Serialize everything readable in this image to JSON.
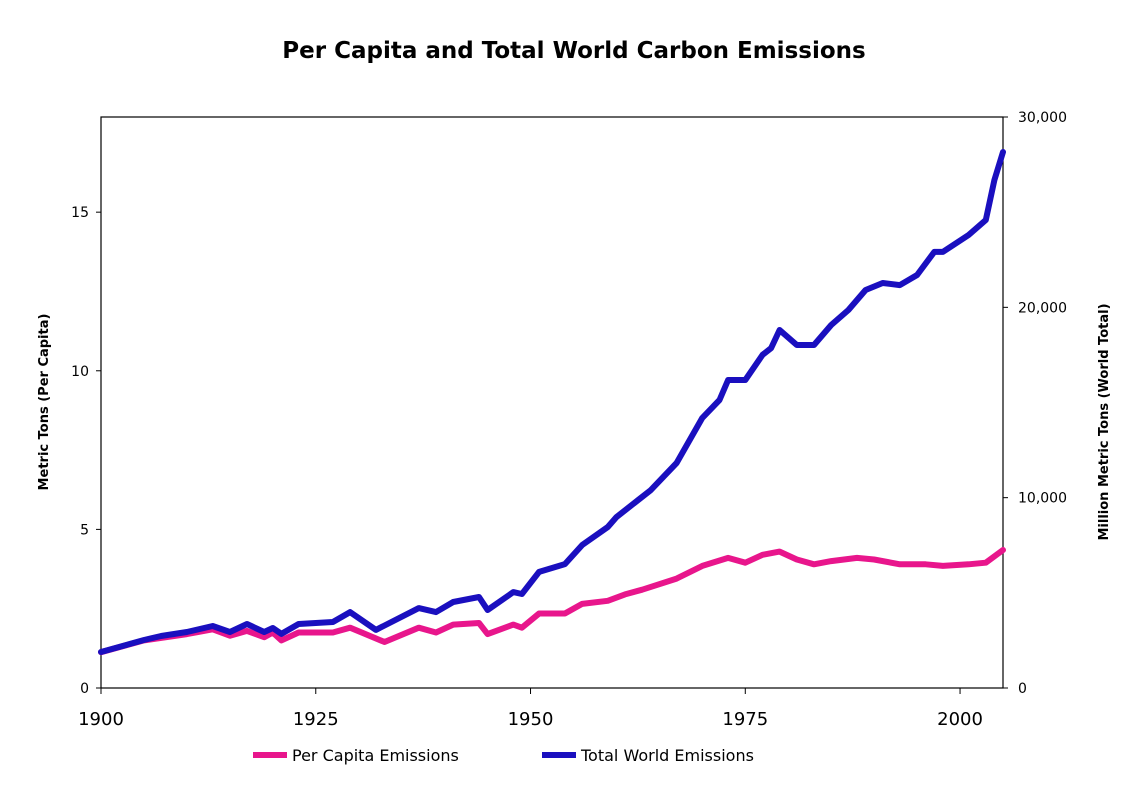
{
  "chart_data": {
    "type": "line",
    "title": "Per Capita and Total World Carbon Emissions",
    "xlabel": "",
    "ylabel": "Metric Tons (Per Capita)",
    "y2label": "Million Metric Tons (World Total)",
    "xlim": [
      1900,
      2005
    ],
    "ylim": [
      0,
      18
    ],
    "y2lim": [
      0,
      30000
    ],
    "xticks": [
      "1900",
      "1925",
      "1950",
      "1975",
      "2000"
    ],
    "yticks": [
      "0",
      "5",
      "10",
      "15"
    ],
    "y2ticks": [
      "0",
      "10,000",
      "20,000",
      "30,000"
    ],
    "grid": false,
    "legend_position": "bottom",
    "series": [
      {
        "name": "Per Capita Emissions",
        "axis": "left",
        "color": "#e8168c",
        "x": [
          1900,
          1905,
          1910,
          1913,
          1915,
          1917,
          1919,
          1920,
          1921,
          1923,
          1927,
          1929,
          1933,
          1937,
          1939,
          1941,
          1944,
          1945,
          1948,
          1949,
          1951,
          1954,
          1956,
          1959,
          1961,
          1963,
          1967,
          1970,
          1973,
          1975,
          1977,
          1979,
          1981,
          1983,
          1985,
          1988,
          1990,
          1993,
          1996,
          1998,
          2001,
          2003,
          2005
        ],
        "y": [
          1.13,
          1.5,
          1.7,
          1.85,
          1.65,
          1.8,
          1.6,
          1.75,
          1.5,
          1.75,
          1.75,
          1.9,
          1.45,
          1.9,
          1.75,
          2.0,
          2.05,
          1.7,
          2.0,
          1.9,
          2.35,
          2.35,
          2.65,
          2.75,
          2.95,
          3.1,
          3.45,
          3.85,
          4.1,
          3.95,
          4.2,
          4.3,
          4.05,
          3.9,
          4.0,
          4.1,
          4.05,
          3.9,
          3.9,
          3.85,
          3.9,
          3.95,
          4.35
        ]
      },
      {
        "name": "Total World Emissions",
        "axis": "right",
        "color": "#1a0fbf",
        "x": [
          1900,
          1905,
          1907,
          1910,
          1913,
          1915,
          1917,
          1919,
          1920,
          1921,
          1923,
          1927,
          1929,
          1932,
          1937,
          1939,
          1941,
          1944,
          1945,
          1948,
          1949,
          1951,
          1954,
          1956,
          1959,
          1960,
          1964,
          1967,
          1970,
          1972,
          1973,
          1975,
          1977,
          1978,
          1979,
          1981,
          1983,
          1985,
          1987,
          1989,
          1991,
          1993,
          1995,
          1997,
          1998,
          2001,
          2003,
          2004,
          2005
        ],
        "y": [
          1890,
          2520,
          2730,
          2940,
          3260,
          2940,
          3360,
          2940,
          3150,
          2840,
          3360,
          3470,
          3990,
          3050,
          4200,
          3990,
          4520,
          4780,
          4100,
          5040,
          4940,
          6100,
          6510,
          7510,
          8460,
          8980,
          10400,
          11820,
          14190,
          15130,
          16180,
          16180,
          17500,
          17860,
          18810,
          18020,
          18020,
          19070,
          19860,
          20910,
          21280,
          21170,
          21700,
          22910,
          22910,
          23800,
          24590,
          26690,
          28160
        ]
      }
    ]
  }
}
